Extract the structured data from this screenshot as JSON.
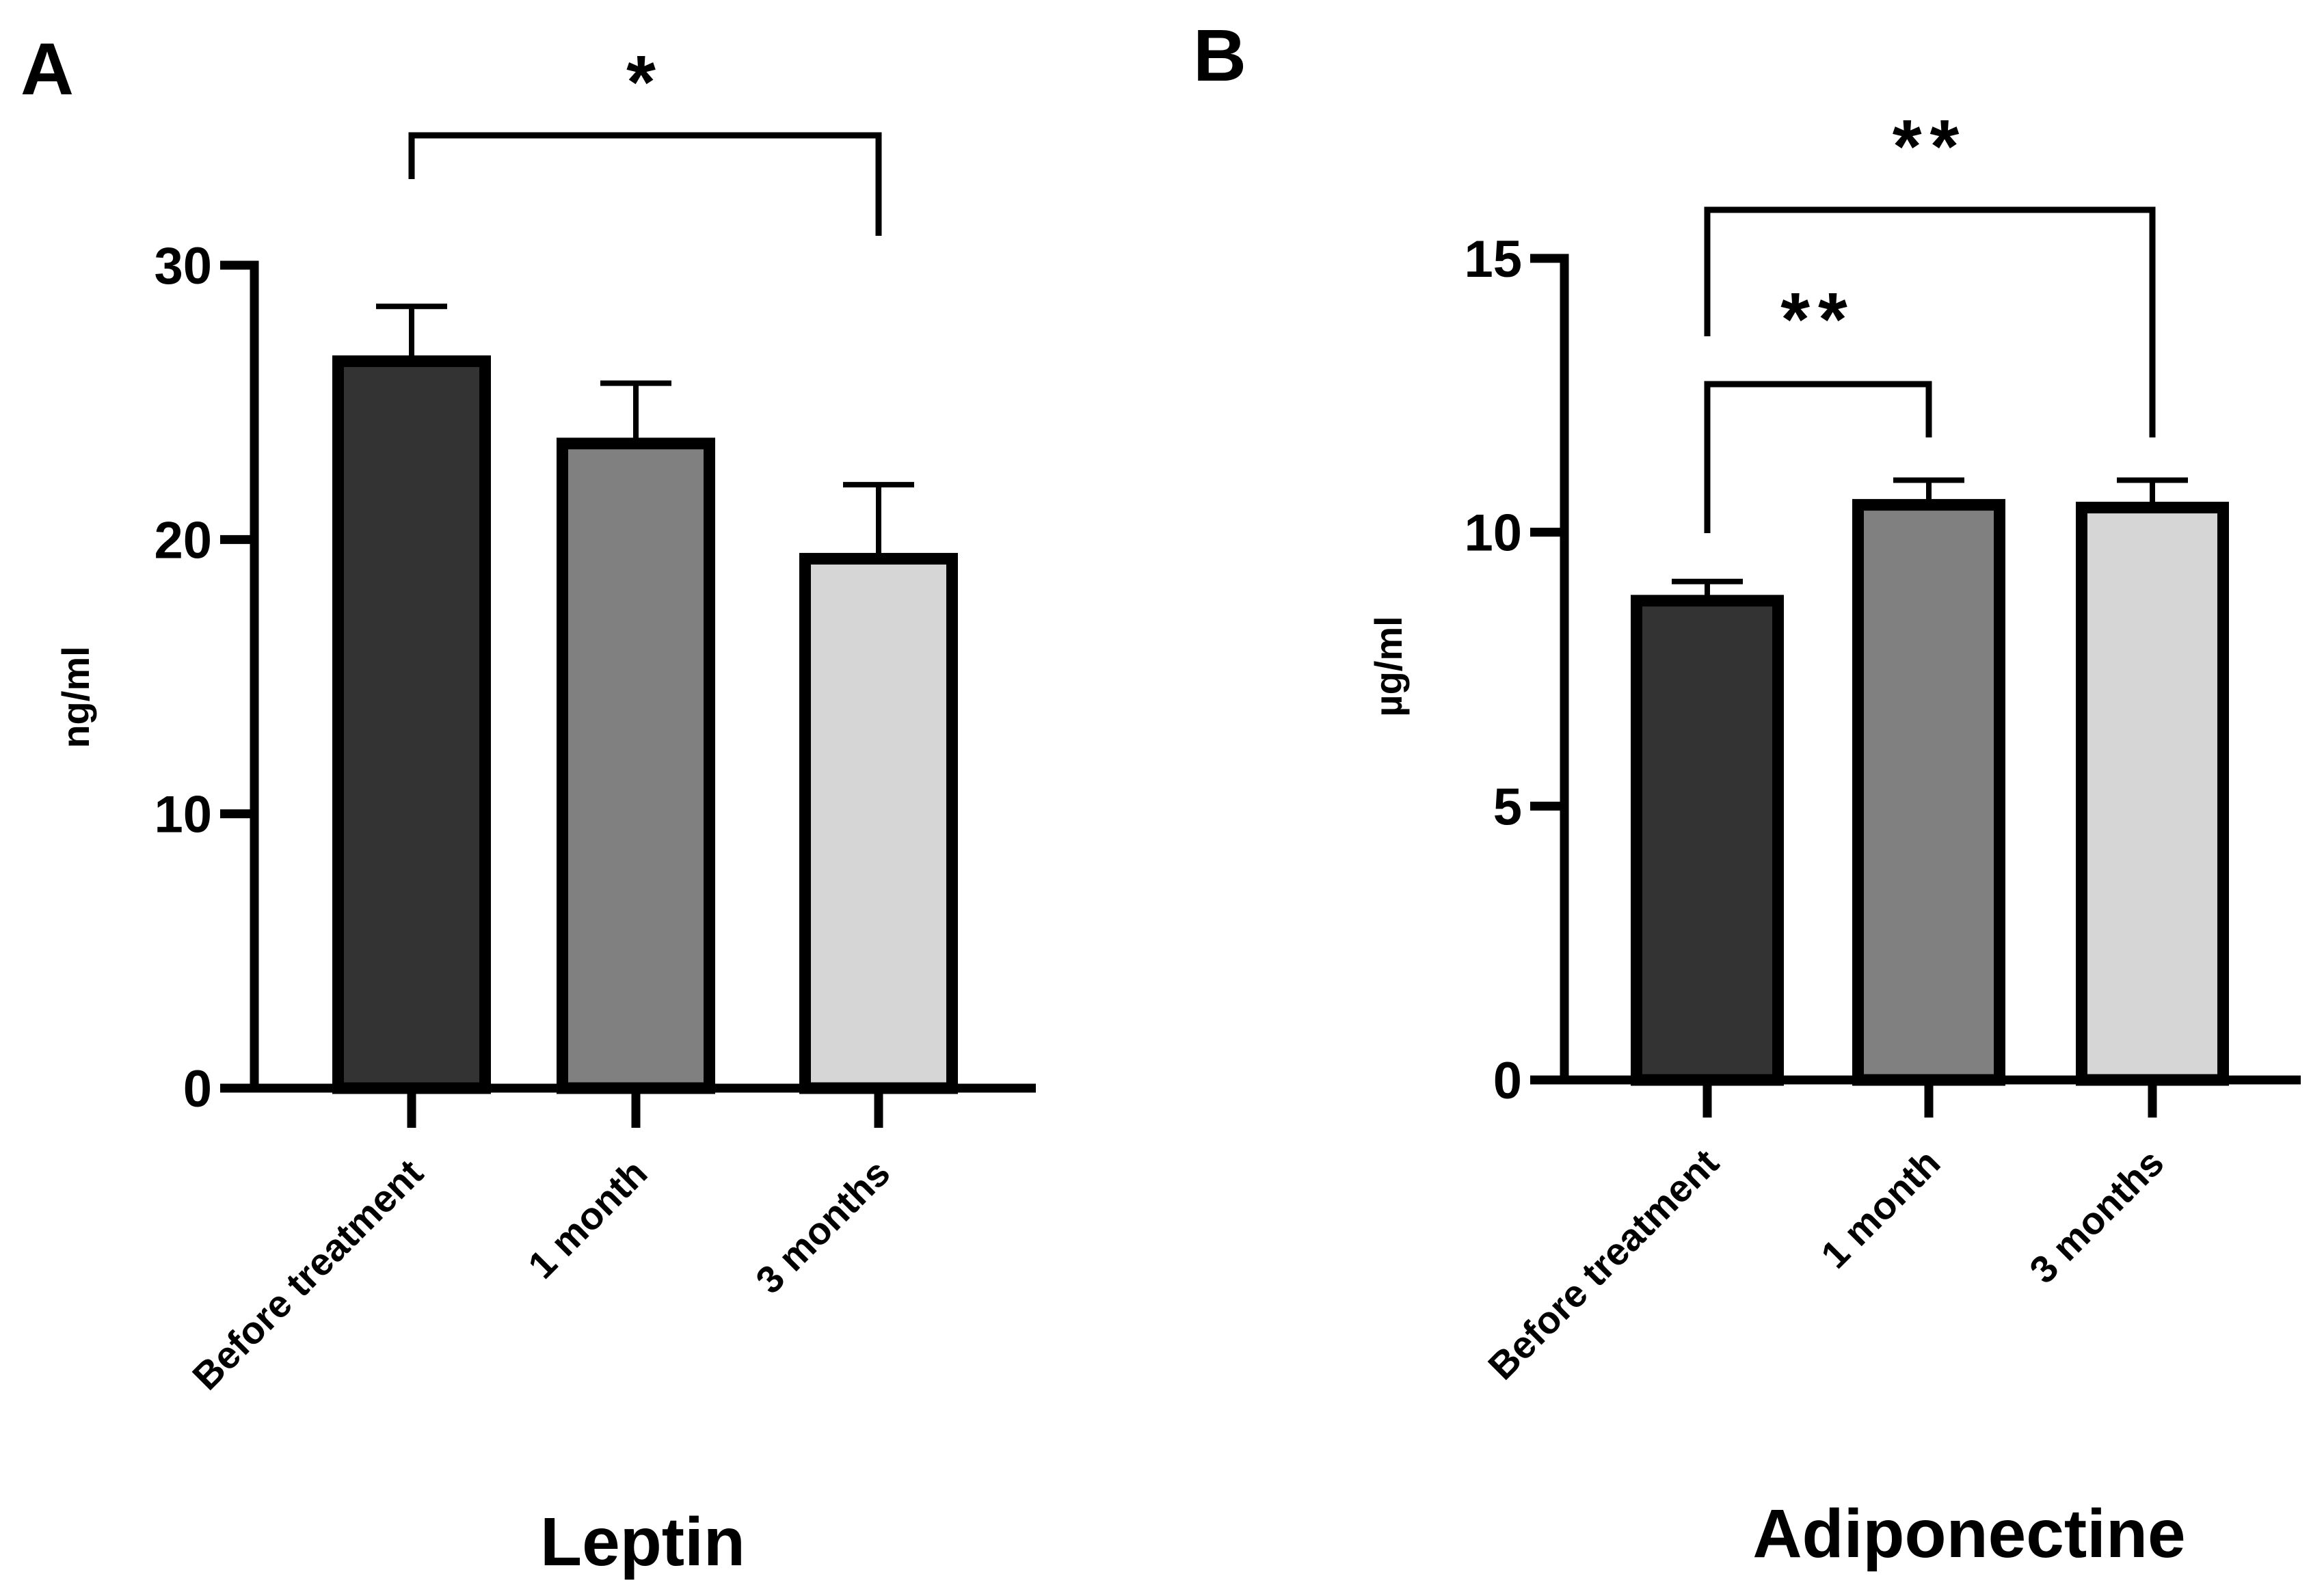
{
  "figure": {
    "colors": {
      "before": "#333333",
      "one_month": "#808080",
      "three_months": "#d6d6d6",
      "stroke": "#000000"
    }
  },
  "chart_data": [
    {
      "panel": "A",
      "type": "bar",
      "title": "",
      "xlabel": "Leptin",
      "ylabel": "ng/ml",
      "categories": [
        "Before treatment",
        "1 month",
        "3 months"
      ],
      "values": [
        26.5,
        23.5,
        19.3
      ],
      "errors": [
        2.0,
        2.2,
        2.7
      ],
      "ylim": [
        0,
        30
      ],
      "yticks": [
        "0",
        "10",
        "20",
        "30"
      ],
      "ytick_values": [
        0,
        10,
        20,
        30
      ],
      "significance": [
        {
          "from": 0,
          "to": 2,
          "label": "*"
        }
      ]
    },
    {
      "panel": "B",
      "type": "bar",
      "title": "",
      "xlabel": "Adiponectine",
      "ylabel": "µg/ml",
      "categories": [
        "Before treatment",
        "1 month",
        "3 months"
      ],
      "values": [
        8.75,
        10.5,
        10.45
      ],
      "errors": [
        0.35,
        0.45,
        0.5
      ],
      "ylim": [
        0,
        15
      ],
      "yticks": [
        "0",
        "5",
        "10",
        "15"
      ],
      "ytick_values": [
        0,
        5,
        10,
        15
      ],
      "significance": [
        {
          "from": 0,
          "to": 1,
          "label": "**"
        },
        {
          "from": 0,
          "to": 2,
          "label": "**"
        }
      ]
    }
  ]
}
